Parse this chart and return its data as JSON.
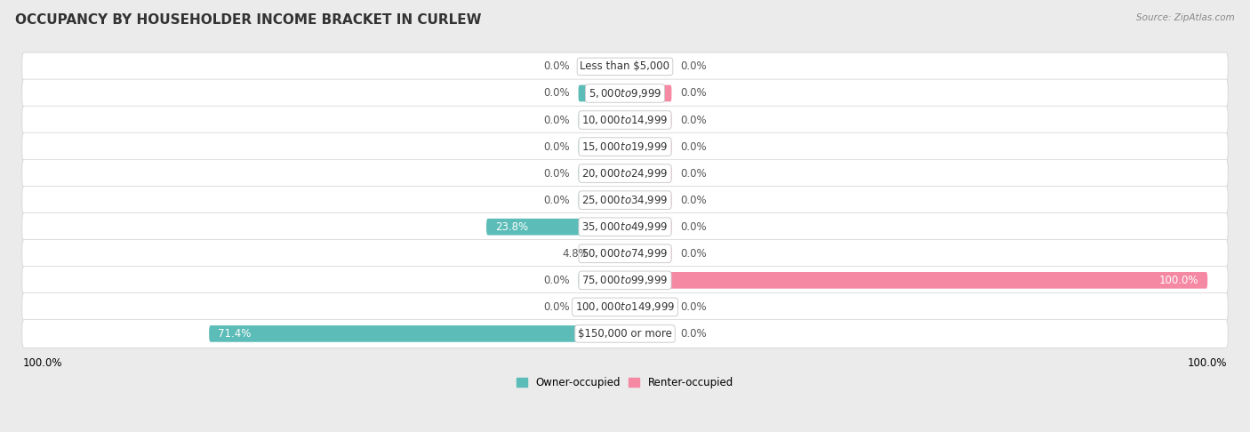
{
  "title": "OCCUPANCY BY HOUSEHOLDER INCOME BRACKET IN CURLEW",
  "source": "Source: ZipAtlas.com",
  "categories": [
    "Less than $5,000",
    "$5,000 to $9,999",
    "$10,000 to $14,999",
    "$15,000 to $19,999",
    "$20,000 to $24,999",
    "$25,000 to $34,999",
    "$35,000 to $49,999",
    "$50,000 to $74,999",
    "$75,000 to $99,999",
    "$100,000 to $149,999",
    "$150,000 or more"
  ],
  "owner_occupied": [
    0.0,
    0.0,
    0.0,
    0.0,
    0.0,
    0.0,
    23.8,
    4.8,
    0.0,
    0.0,
    71.4
  ],
  "renter_occupied": [
    0.0,
    0.0,
    0.0,
    0.0,
    0.0,
    0.0,
    0.0,
    0.0,
    100.0,
    0.0,
    0.0
  ],
  "owner_color": "#5bbcb8",
  "renter_color": "#f589a3",
  "bg_color": "#ebebeb",
  "row_bg_color": "#e0e0e0",
  "title_fontsize": 11,
  "label_fontsize": 8.5,
  "value_fontsize": 8.5,
  "axis_max": 100.0,
  "bar_height": 0.62
}
